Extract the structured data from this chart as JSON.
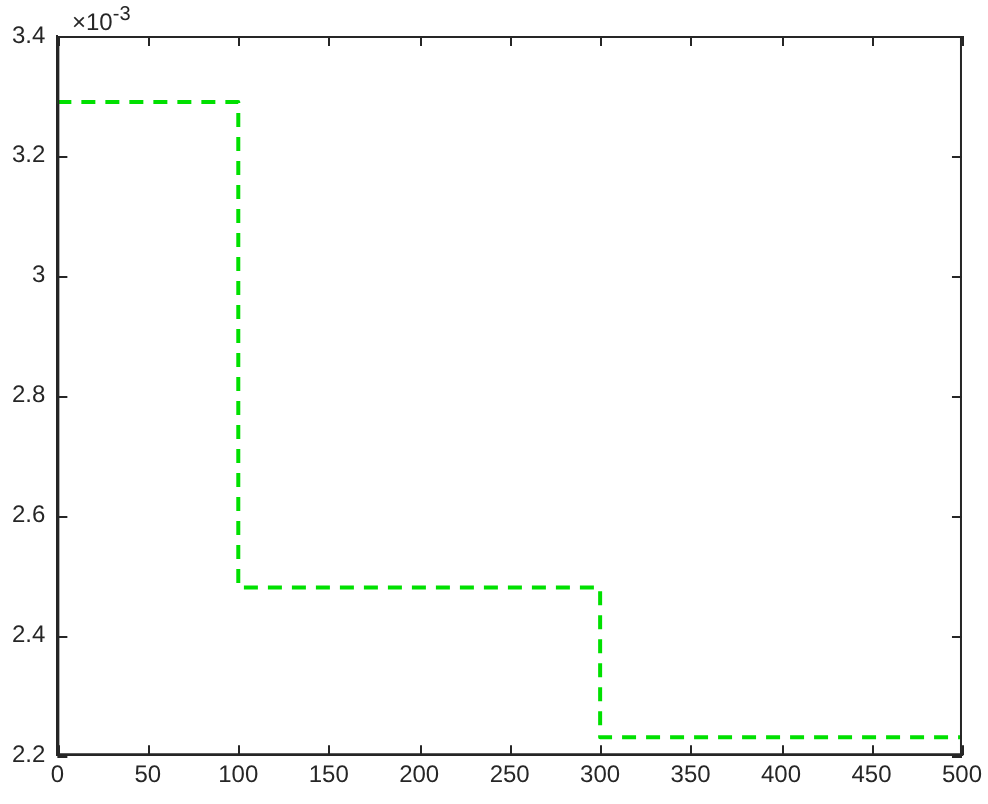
{
  "chart_data": {
    "type": "step",
    "x": [
      0,
      100,
      300,
      500
    ],
    "series": [
      {
        "color": "#00e000",
        "values": [
          3.29,
          2.48,
          2.23,
          2.23
        ]
      }
    ],
    "xlim": [
      0,
      500
    ],
    "xticks": [
      0,
      50,
      100,
      150,
      200,
      250,
      300,
      350,
      400,
      450,
      500
    ],
    "ylim": [
      2.2,
      3.4
    ],
    "yticks": [
      2.2,
      2.4,
      2.6,
      2.8,
      3,
      3.2,
      3.4
    ],
    "line_style": "dashed",
    "marker": "none",
    "grid": false,
    "legend": false,
    "annotations": [
      "×10$^{-3}$"
    ]
  }
}
